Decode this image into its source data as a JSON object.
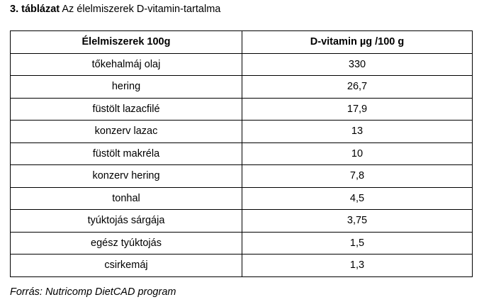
{
  "caption": {
    "label": "3. táblázat",
    "text": " Az élelmiszerek D-vitamin-tartalma"
  },
  "table": {
    "headers": [
      "Élelmiszerek 100g",
      "D-vitamin µg /100 g"
    ],
    "rows": [
      [
        "tőkehalmáj olaj",
        "330"
      ],
      [
        "hering",
        "26,7"
      ],
      [
        "füstölt lazacfilé",
        "17,9"
      ],
      [
        "konzerv lazac",
        "13"
      ],
      [
        "füstölt makréla",
        "10"
      ],
      [
        "konzerv hering",
        "7,8"
      ],
      [
        "tonhal",
        "4,5"
      ],
      [
        "tyúktojás sárgája",
        "3,75"
      ],
      [
        "egész tyúktojás",
        "1,5"
      ],
      [
        "csirkemáj",
        "1,3"
      ]
    ]
  },
  "source": "Forrás: Nutricomp DietCAD program"
}
